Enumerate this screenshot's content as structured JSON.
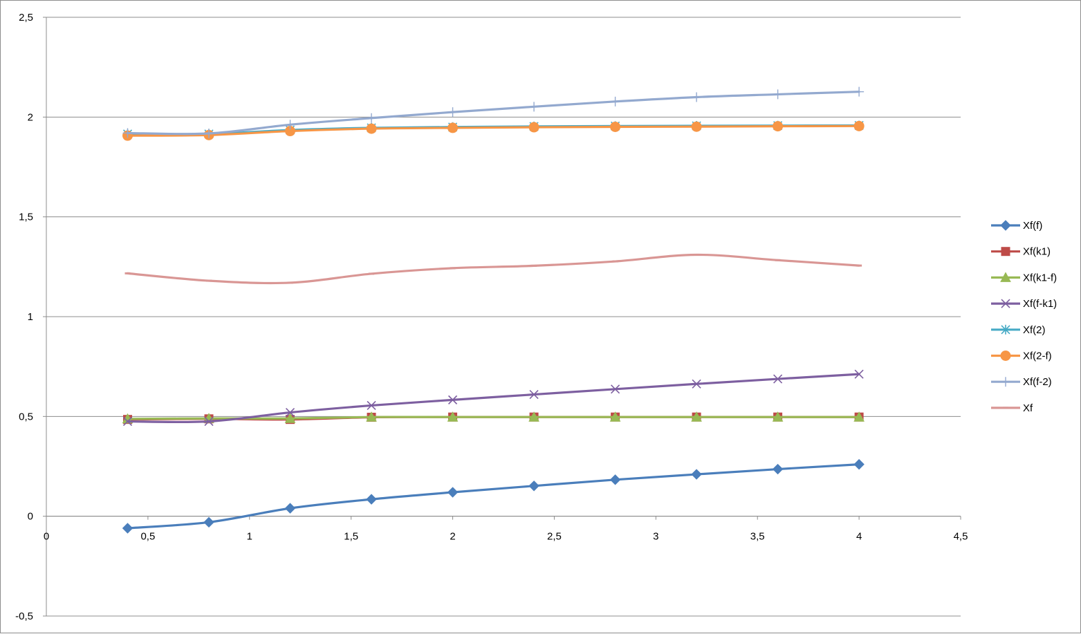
{
  "chart_data": {
    "type": "line",
    "title": "",
    "xlabel": "",
    "ylabel": "",
    "xlim": [
      0,
      4.5
    ],
    "ylim": [
      -0.5,
      2.5
    ],
    "x_ticks": [
      "0",
      "0,5",
      "1",
      "1,5",
      "2",
      "2,5",
      "3",
      "3,5",
      "4",
      "4,5"
    ],
    "y_ticks": [
      "-0,5",
      "0",
      "0,5",
      "1",
      "1,5",
      "2",
      "2,5"
    ],
    "x_tick_values": [
      0,
      0.5,
      1,
      1.5,
      2,
      2.5,
      3,
      3.5,
      4,
      4.5
    ],
    "y_tick_values": [
      -0.5,
      0,
      0.5,
      1,
      1.5,
      2,
      2.5
    ],
    "grid": "horizontal",
    "legend_position": "right",
    "x": [
      0.4,
      0.8,
      1.2,
      1.6,
      2.0,
      2.4,
      2.8,
      3.2,
      3.6,
      4.0
    ],
    "series": [
      {
        "name": "Xf(f)",
        "color": "#4a7ebb",
        "marker": "diamond",
        "values": [
          -0.06,
          -0.03,
          0.04,
          0.085,
          0.12,
          0.152,
          0.183,
          0.21,
          0.236,
          0.26
        ]
      },
      {
        "name": "Xf(k1)",
        "color": "#be4b48",
        "marker": "square",
        "values": [
          0.485,
          0.488,
          0.485,
          0.496,
          0.497,
          0.497,
          0.497,
          0.497,
          0.497,
          0.497
        ]
      },
      {
        "name": "Xf(k1-f)",
        "color": "#98b954",
        "marker": "triangle",
        "values": [
          0.488,
          0.49,
          0.49,
          0.497,
          0.497,
          0.497,
          0.497,
          0.497,
          0.497,
          0.497
        ]
      },
      {
        "name": "Xf(f-k1)",
        "color": "#7d5fa0",
        "marker": "x",
        "values": [
          0.475,
          0.475,
          0.52,
          0.555,
          0.583,
          0.61,
          0.637,
          0.663,
          0.688,
          0.712
        ]
      },
      {
        "name": "Xf(2)",
        "color": "#46aac5",
        "marker": "star",
        "values": [
          1.915,
          1.915,
          1.935,
          1.946,
          1.95,
          1.953,
          1.955,
          1.956,
          1.957,
          1.958
        ]
      },
      {
        "name": "Xf(2-f)",
        "color": "#f79646",
        "marker": "circle",
        "values": [
          1.907,
          1.91,
          1.93,
          1.942,
          1.946,
          1.949,
          1.951,
          1.952,
          1.954,
          1.955
        ]
      },
      {
        "name": "Xf(f-2)",
        "color": "#93a9cf",
        "marker": "plus",
        "values": [
          1.92,
          1.918,
          1.962,
          1.995,
          2.025,
          2.052,
          2.078,
          2.1,
          2.114,
          2.127
        ]
      },
      {
        "name": "Xf",
        "color": "#d99694",
        "marker": "dash",
        "values": [
          1.217,
          1.18,
          1.17,
          1.215,
          1.243,
          1.255,
          1.277,
          1.31,
          1.283,
          1.256
        ]
      }
    ]
  }
}
